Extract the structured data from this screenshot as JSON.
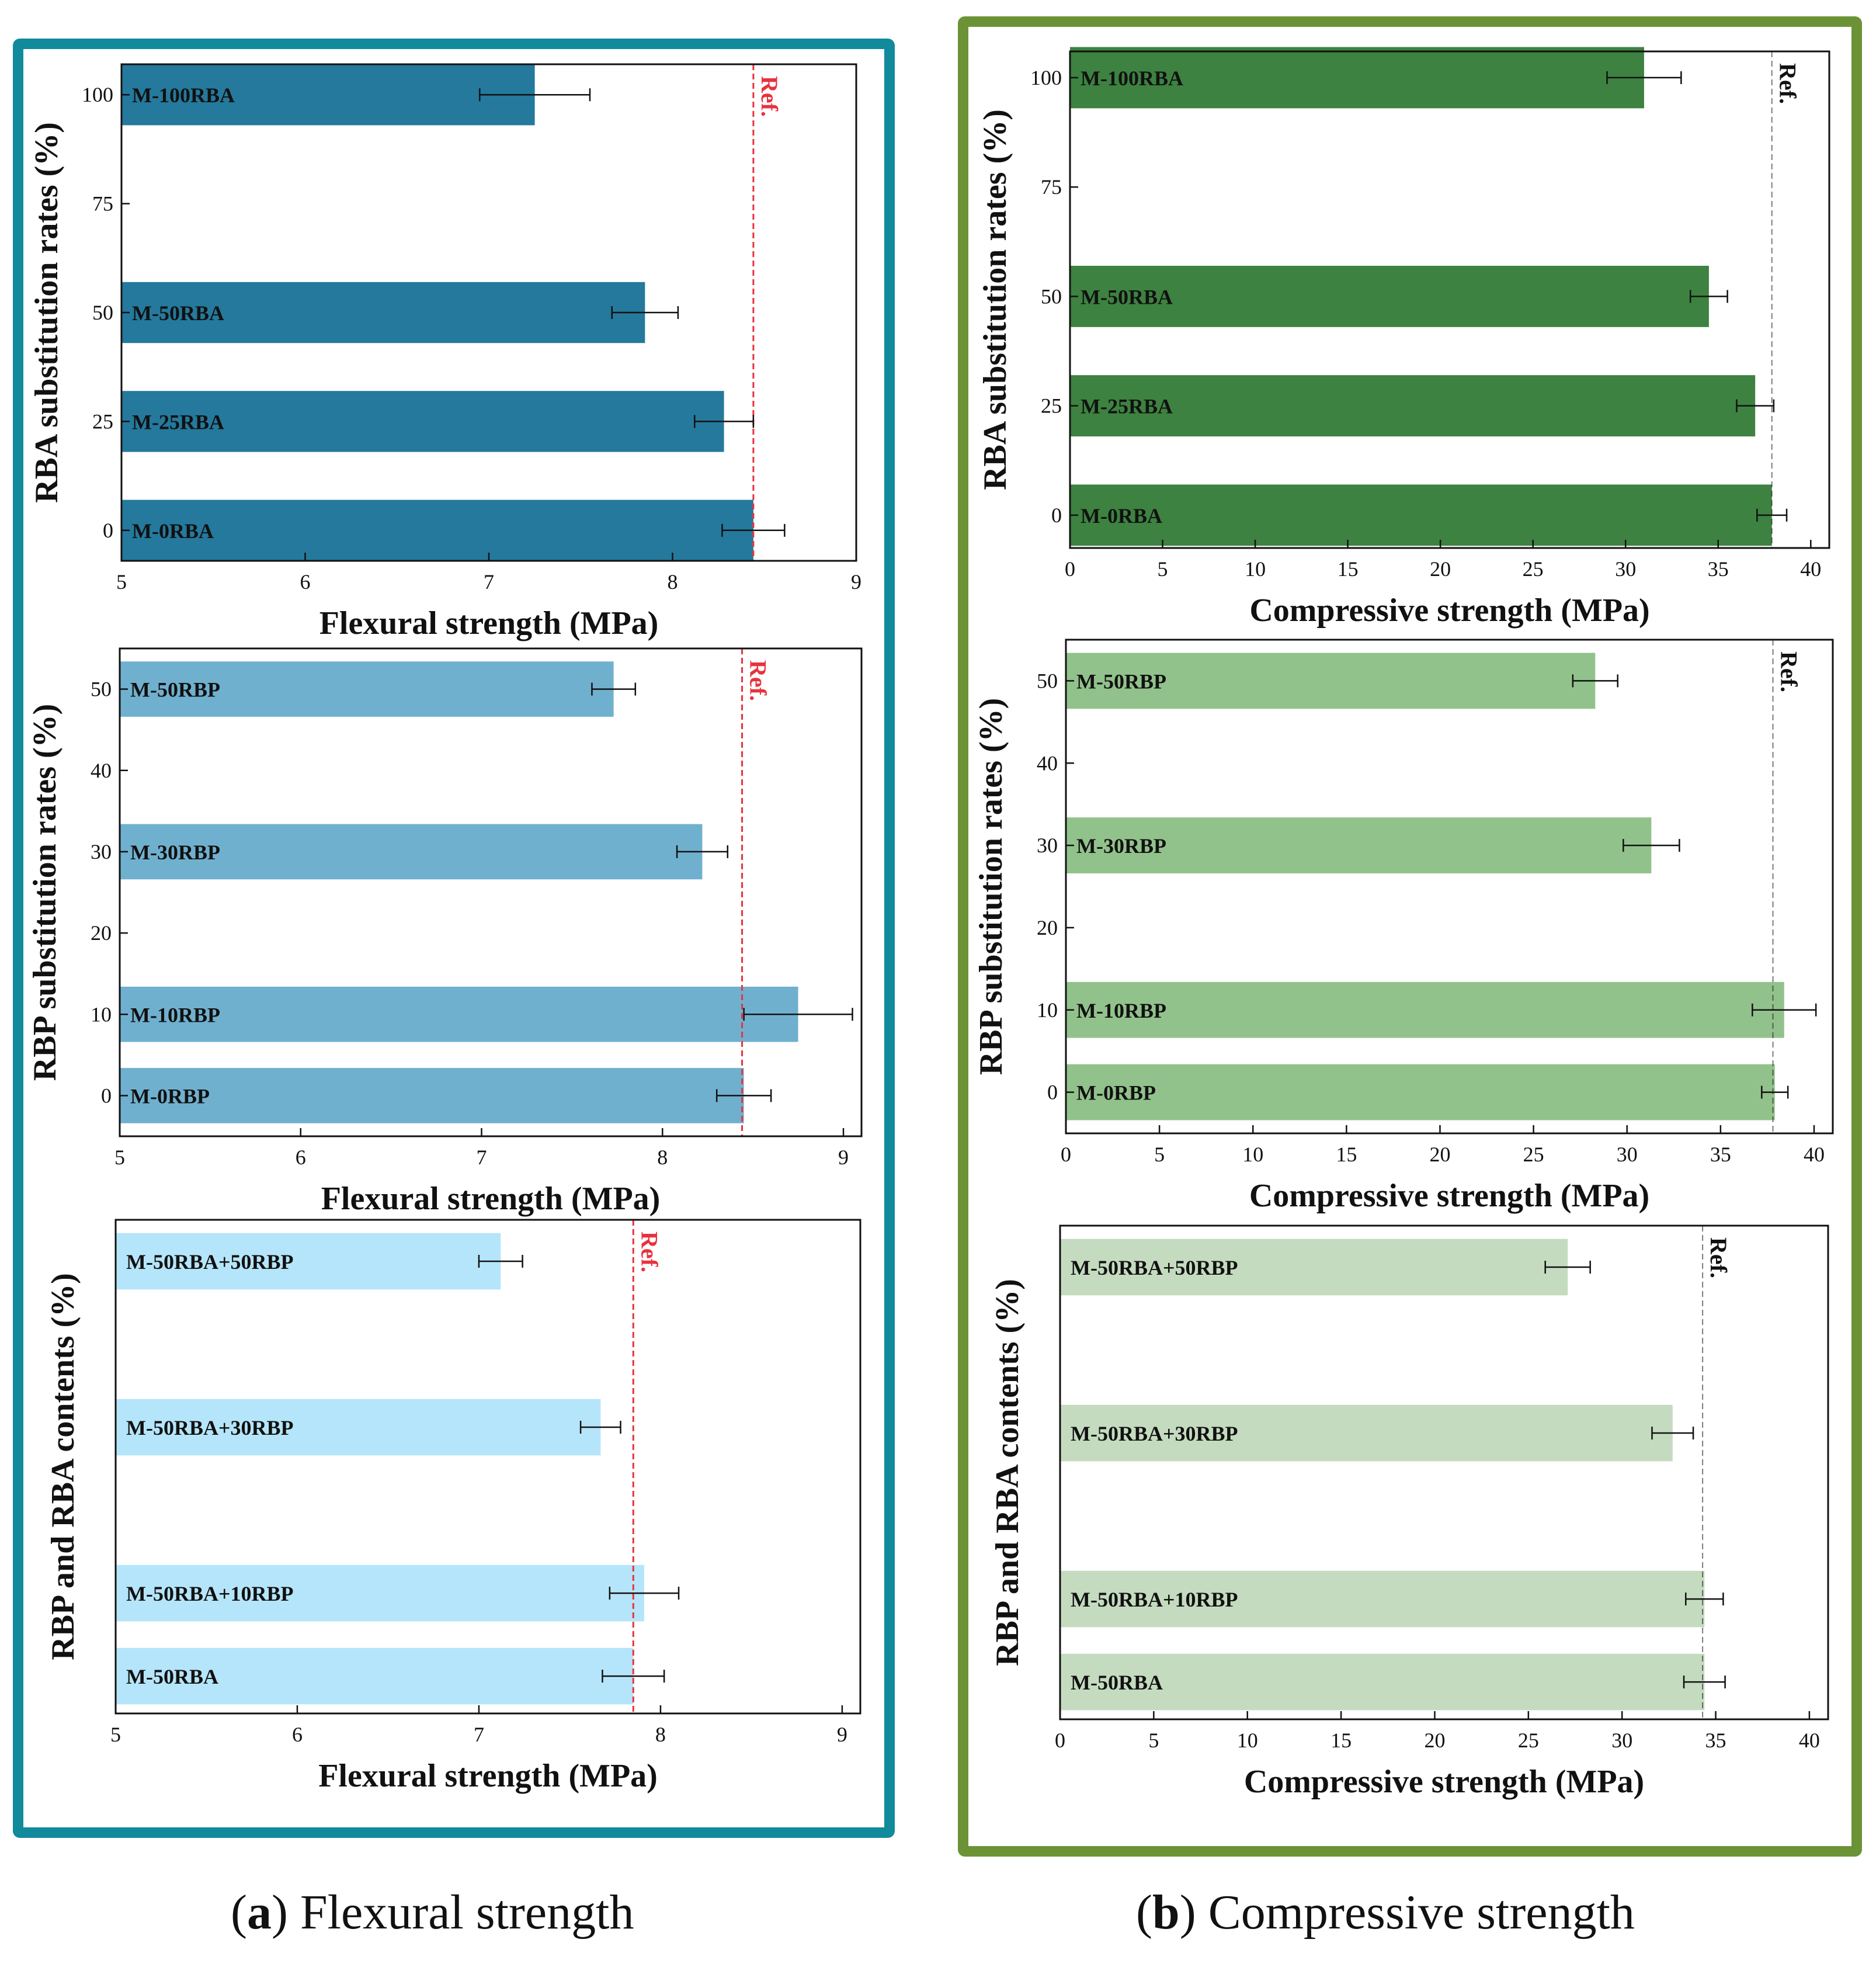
{
  "captions": {
    "a": {
      "letter": "a",
      "text": " Flexural strength"
    },
    "b": {
      "letter": "b",
      "text": " Compressive strength"
    }
  },
  "chart_data": [
    {
      "id": "a1",
      "type": "bar",
      "orientation": "horizontal",
      "xlabel": "Flexural strength (MPa)",
      "ylabel": "RBA substitution rates (%)",
      "xlim": [
        5,
        9
      ],
      "xticks": [
        5,
        6,
        7,
        8,
        9
      ],
      "ylim": [
        -7,
        107
      ],
      "yticks": [
        0,
        25,
        50,
        75,
        100
      ],
      "bar_color": "#24799c",
      "bar_half_height": 7,
      "ref": {
        "value": 8.44,
        "label": "Ref.",
        "color": "#e8323e",
        "dashed": true
      },
      "bars": [
        {
          "label": "M-100RBA",
          "y": 100,
          "value": 7.25,
          "error": 0.3
        },
        {
          "label": "M-50RBA",
          "y": 50,
          "value": 7.85,
          "error": 0.18
        },
        {
          "label": "M-25RBA",
          "y": 25,
          "value": 8.28,
          "error": 0.16
        },
        {
          "label": "M-0RBA",
          "y": 0,
          "value": 8.44,
          "error": 0.17
        }
      ]
    },
    {
      "id": "a2",
      "type": "bar",
      "orientation": "horizontal",
      "xlabel": "Flexural strength (MPa)",
      "ylabel": "RBP substitution rates (%)",
      "xlim": [
        5,
        9.1
      ],
      "xticks": [
        5,
        6,
        7,
        8,
        9
      ],
      "ylim": [
        -5,
        55
      ],
      "yticks": [
        0,
        10,
        20,
        30,
        40,
        50
      ],
      "bar_color": "#70b0cf",
      "bar_half_height": 3.4,
      "ref": {
        "value": 8.44,
        "label": "Ref.",
        "color": "#e8323e",
        "dashed": true
      },
      "bars": [
        {
          "label": "M-50RBP",
          "y": 50,
          "value": 7.73,
          "error": 0.12
        },
        {
          "label": "M-30RBP",
          "y": 30,
          "value": 8.22,
          "error": 0.14
        },
        {
          "label": "M-10RBP",
          "y": 10,
          "value": 8.75,
          "error": 0.3
        },
        {
          "label": "M-0RBP",
          "y": 0,
          "value": 8.45,
          "error": 0.15
        }
      ]
    },
    {
      "id": "a3",
      "type": "bar",
      "orientation": "horizontal",
      "xlabel": "Flexural strength (MPa)",
      "ylabel": "RBP and RBA contents (%)",
      "xlim": [
        5,
        9.1
      ],
      "xticks": [
        5,
        6,
        7,
        8,
        9
      ],
      "ylim": [
        -4.5,
        55
      ],
      "yticks": [],
      "bar_color": "#b5e5fa",
      "bar_half_height": 3.4,
      "ref": {
        "value": 7.85,
        "label": "Ref.",
        "color": "#e8323e",
        "dashed": true
      },
      "bars": [
        {
          "label": "M-50RBA+50RBP",
          "y": 50,
          "value": 7.12,
          "error": 0.12
        },
        {
          "label": "M-50RBA+30RBP",
          "y": 30,
          "value": 7.67,
          "error": 0.11
        },
        {
          "label": "M-50RBA+10RBP",
          "y": 10,
          "value": 7.91,
          "error": 0.19
        },
        {
          "label": "M-50RBA",
          "y": 0,
          "value": 7.85,
          "error": 0.17
        }
      ]
    },
    {
      "id": "b1",
      "type": "bar",
      "orientation": "horizontal",
      "xlabel": "Compressive strength (MPa)",
      "ylabel": "RBA substitution rates (%)",
      "xlim": [
        0,
        41
      ],
      "xticks": [
        0,
        5,
        10,
        15,
        20,
        25,
        30,
        35,
        40
      ],
      "ylim": [
        -7.5,
        106
      ],
      "yticks": [
        0,
        25,
        50,
        75,
        100
      ],
      "bar_color": "#3d8240",
      "bar_half_height": 7,
      "ref": {
        "value": 37.9,
        "label": "Ref.",
        "color": "#111111",
        "dashed": true
      },
      "bars": [
        {
          "label": "M-100RBA",
          "y": 100,
          "value": 31.0,
          "error": 2.0
        },
        {
          "label": "M-50RBA",
          "y": 50,
          "value": 34.5,
          "error": 1.0
        },
        {
          "label": "M-25RBA",
          "y": 25,
          "value": 37.0,
          "error": 1.0
        },
        {
          "label": "M-0RBA",
          "y": 0,
          "value": 37.9,
          "error": 0.8
        }
      ]
    },
    {
      "id": "b2",
      "type": "bar",
      "orientation": "horizontal",
      "xlabel": "Compressive strength (MPa)",
      "ylabel": "RBP substitution rates (%)",
      "xlim": [
        0,
        41
      ],
      "xticks": [
        0,
        5,
        10,
        15,
        20,
        25,
        30,
        35,
        40
      ],
      "ylim": [
        -5,
        55
      ],
      "yticks": [
        0,
        10,
        20,
        30,
        40,
        50
      ],
      "bar_color": "#92c28b",
      "bar_half_height": 3.4,
      "ref": {
        "value": 37.8,
        "label": "Ref.",
        "color": "#111111",
        "dashed": true
      },
      "bars": [
        {
          "label": "M-50RBP",
          "y": 50,
          "value": 28.3,
          "error": 1.2
        },
        {
          "label": "M-30RBP",
          "y": 30,
          "value": 31.3,
          "error": 1.5
        },
        {
          "label": "M-10RBP",
          "y": 10,
          "value": 38.4,
          "error": 1.7
        },
        {
          "label": "M-0RBP",
          "y": 0,
          "value": 37.9,
          "error": 0.7
        }
      ]
    },
    {
      "id": "b3",
      "type": "bar",
      "orientation": "horizontal",
      "xlabel": "Compressive strength (MPa)",
      "ylabel": "RBP and RBA contents (%)",
      "xlim": [
        0,
        41
      ],
      "xticks": [
        0,
        5,
        10,
        15,
        20,
        25,
        30,
        35,
        40
      ],
      "ylim": [
        -4.5,
        55
      ],
      "yticks": [],
      "bar_color": "#c4dbbf",
      "bar_half_height": 3.4,
      "ref": {
        "value": 34.3,
        "label": "Ref.",
        "color": "#111111",
        "dashed": true
      },
      "bars": [
        {
          "label": "M-50RBA+50RBP",
          "y": 50,
          "value": 27.1,
          "error": 1.2
        },
        {
          "label": "M-50RBA+30RBP",
          "y": 30,
          "value": 32.7,
          "error": 1.1
        },
        {
          "label": "M-50RBA+10RBP",
          "y": 10,
          "value": 34.4,
          "error": 1.0
        },
        {
          "label": "M-50RBA",
          "y": 0,
          "value": 34.4,
          "error": 1.1
        }
      ]
    }
  ]
}
